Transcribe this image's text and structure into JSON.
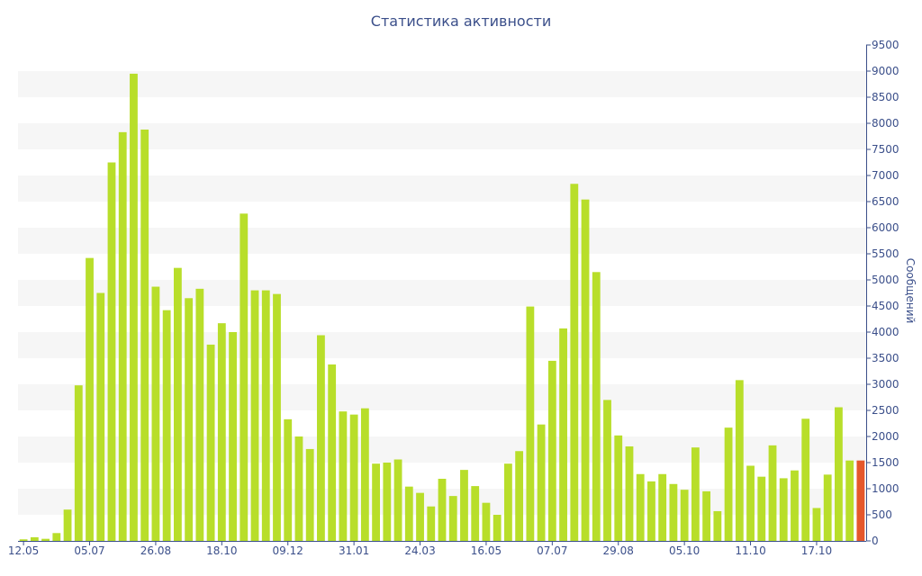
{
  "chart_data": {
    "type": "bar",
    "title": "Статистика активности",
    "ylabel": "Сообщений",
    "xlabel": "",
    "ylim": [
      0,
      9500
    ],
    "yticks": [
      0,
      500,
      1000,
      1500,
      2000,
      2500,
      3000,
      3500,
      4000,
      4500,
      5000,
      5500,
      6000,
      6500,
      7000,
      7500,
      8000,
      8500,
      9000,
      9500
    ],
    "y_axis_position": "right",
    "grid": "alternating horizontal bands",
    "colors": {
      "bar": "#b8de2a",
      "highlight": "#e5572b",
      "band": "#f6f6f6",
      "text": "#3b4f8a"
    },
    "xtick_labels": [
      {
        "index": 0,
        "label": "12.05"
      },
      {
        "index": 6,
        "label": "05.07"
      },
      {
        "index": 12,
        "label": "26.08"
      },
      {
        "index": 18,
        "label": "18.10"
      },
      {
        "index": 24,
        "label": "09.12"
      },
      {
        "index": 30,
        "label": "31.01"
      },
      {
        "index": 36,
        "label": "24.03"
      },
      {
        "index": 42,
        "label": "16.05"
      },
      {
        "index": 48,
        "label": "07.07"
      },
      {
        "index": 54,
        "label": "29.08"
      },
      {
        "index": 60,
        "label": "05.10"
      },
      {
        "index": 66,
        "label": "11.10"
      },
      {
        "index": 72,
        "label": "17.10"
      }
    ],
    "values": [
      30,
      70,
      40,
      150,
      600,
      2980,
      5420,
      4750,
      7250,
      7830,
      8950,
      7880,
      4870,
      4420,
      5230,
      4650,
      4830,
      3760,
      4170,
      4000,
      6270,
      4800,
      4800,
      4730,
      2330,
      2000,
      1760,
      3940,
      3380,
      2480,
      2420,
      2540,
      1480,
      1500,
      1560,
      1040,
      920,
      660,
      1190,
      860,
      1360,
      1050,
      730,
      500,
      1480,
      1720,
      4490,
      2230,
      3450,
      4070,
      6840,
      6540,
      5150,
      2700,
      2020,
      1810,
      1280,
      1140,
      1280,
      1090,
      980,
      1790,
      950,
      570,
      2170,
      3080,
      1440,
      1230,
      1830,
      1200,
      1350,
      2340,
      630,
      1270,
      2560,
      1540,
      1540
    ],
    "highlight_index": 76
  }
}
